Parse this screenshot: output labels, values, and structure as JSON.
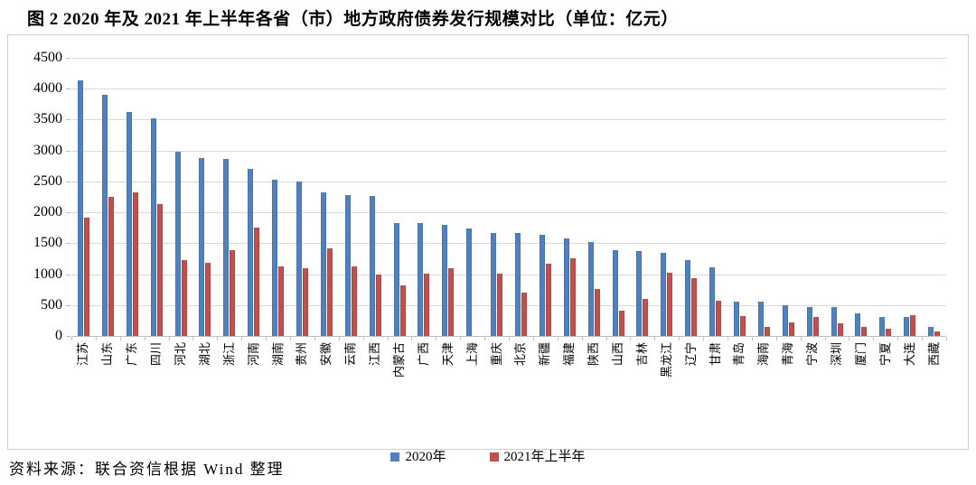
{
  "title": "图 2  2020 年及 2021 年上半年各省（市）地方政府债券发行规模对比（单位：亿元）",
  "source": "资料来源：联合资信根据 Wind 整理",
  "colors": {
    "series_2020": "#4F81BD",
    "series_2021h1": "#C0504D",
    "gridline": "#D9D9D9",
    "axis": "#BFBFBF",
    "frame_border": "#CFCFCF"
  },
  "chart_data": {
    "type": "bar",
    "title": "图 2  2020 年及 2021 年上半年各省（市）地方政府债券发行规模对比",
    "unit": "亿元",
    "categories": [
      "江苏",
      "山东",
      "广东",
      "四川",
      "河北",
      "湖北",
      "浙江",
      "河南",
      "湖南",
      "贵州",
      "安徽",
      "云南",
      "江西",
      "内蒙古",
      "广西",
      "天津",
      "上海",
      "重庆",
      "北京",
      "新疆",
      "福建",
      "陕西",
      "山西",
      "吉林",
      "黑龙江",
      "辽宁",
      "甘肃",
      "青岛",
      "海南",
      "青海",
      "宁波",
      "深圳",
      "厦门",
      "宁夏",
      "大连",
      "西藏"
    ],
    "series": [
      {
        "name": "2020年",
        "color": "#4F81BD",
        "values": [
          4140,
          3900,
          3620,
          3520,
          2980,
          2880,
          2870,
          2710,
          2530,
          2500,
          2320,
          2280,
          2270,
          1830,
          1830,
          1790,
          1740,
          1670,
          1660,
          1640,
          1580,
          1520,
          1390,
          1370,
          1350,
          1230,
          1110,
          560,
          560,
          500,
          470,
          470,
          360,
          310,
          310,
          140
        ]
      },
      {
        "name": "2021年上半年",
        "color": "#C0504D",
        "values": [
          1920,
          2250,
          2320,
          2140,
          1220,
          1180,
          1390,
          1750,
          1120,
          1090,
          1420,
          1120,
          990,
          820,
          1010,
          1100,
          0,
          1010,
          700,
          1170,
          1250,
          760,
          410,
          600,
          1030,
          940,
          570,
          320,
          150,
          220,
          310,
          200,
          150,
          120,
          340,
          70
        ]
      }
    ],
    "xlabel": "",
    "ylabel": "",
    "ylim": [
      0,
      4500
    ],
    "ytick_step": 500,
    "grid": true,
    "legend_position": "bottom"
  }
}
